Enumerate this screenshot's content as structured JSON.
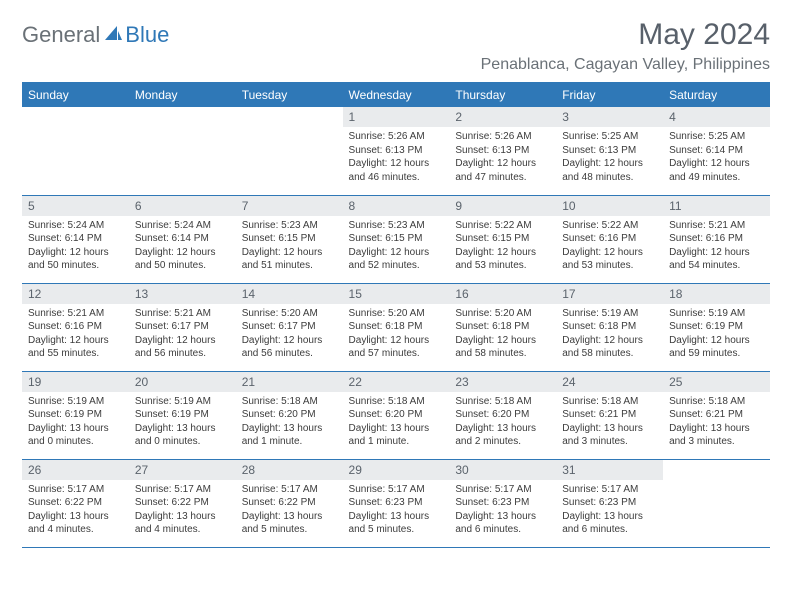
{
  "logo": {
    "text1": "General",
    "text2": "Blue"
  },
  "header": {
    "month_title": "May 2024",
    "location": "Penablanca, Cagayan Valley, Philippines"
  },
  "colors": {
    "brand_blue": "#2f78b7",
    "header_text": "#ffffff",
    "daynum_bg": "#e9ebed",
    "body_text": "#3c3c3c",
    "muted_text": "#6a7177"
  },
  "weekdays": [
    "Sunday",
    "Monday",
    "Tuesday",
    "Wednesday",
    "Thursday",
    "Friday",
    "Saturday"
  ],
  "weeks": [
    [
      null,
      null,
      null,
      {
        "n": "1",
        "sr": "Sunrise: 5:26 AM",
        "ss": "Sunset: 6:13 PM",
        "dl1": "Daylight: 12 hours",
        "dl2": "and 46 minutes."
      },
      {
        "n": "2",
        "sr": "Sunrise: 5:26 AM",
        "ss": "Sunset: 6:13 PM",
        "dl1": "Daylight: 12 hours",
        "dl2": "and 47 minutes."
      },
      {
        "n": "3",
        "sr": "Sunrise: 5:25 AM",
        "ss": "Sunset: 6:13 PM",
        "dl1": "Daylight: 12 hours",
        "dl2": "and 48 minutes."
      },
      {
        "n": "4",
        "sr": "Sunrise: 5:25 AM",
        "ss": "Sunset: 6:14 PM",
        "dl1": "Daylight: 12 hours",
        "dl2": "and 49 minutes."
      }
    ],
    [
      {
        "n": "5",
        "sr": "Sunrise: 5:24 AM",
        "ss": "Sunset: 6:14 PM",
        "dl1": "Daylight: 12 hours",
        "dl2": "and 50 minutes."
      },
      {
        "n": "6",
        "sr": "Sunrise: 5:24 AM",
        "ss": "Sunset: 6:14 PM",
        "dl1": "Daylight: 12 hours",
        "dl2": "and 50 minutes."
      },
      {
        "n": "7",
        "sr": "Sunrise: 5:23 AM",
        "ss": "Sunset: 6:15 PM",
        "dl1": "Daylight: 12 hours",
        "dl2": "and 51 minutes."
      },
      {
        "n": "8",
        "sr": "Sunrise: 5:23 AM",
        "ss": "Sunset: 6:15 PM",
        "dl1": "Daylight: 12 hours",
        "dl2": "and 52 minutes."
      },
      {
        "n": "9",
        "sr": "Sunrise: 5:22 AM",
        "ss": "Sunset: 6:15 PM",
        "dl1": "Daylight: 12 hours",
        "dl2": "and 53 minutes."
      },
      {
        "n": "10",
        "sr": "Sunrise: 5:22 AM",
        "ss": "Sunset: 6:16 PM",
        "dl1": "Daylight: 12 hours",
        "dl2": "and 53 minutes."
      },
      {
        "n": "11",
        "sr": "Sunrise: 5:21 AM",
        "ss": "Sunset: 6:16 PM",
        "dl1": "Daylight: 12 hours",
        "dl2": "and 54 minutes."
      }
    ],
    [
      {
        "n": "12",
        "sr": "Sunrise: 5:21 AM",
        "ss": "Sunset: 6:16 PM",
        "dl1": "Daylight: 12 hours",
        "dl2": "and 55 minutes."
      },
      {
        "n": "13",
        "sr": "Sunrise: 5:21 AM",
        "ss": "Sunset: 6:17 PM",
        "dl1": "Daylight: 12 hours",
        "dl2": "and 56 minutes."
      },
      {
        "n": "14",
        "sr": "Sunrise: 5:20 AM",
        "ss": "Sunset: 6:17 PM",
        "dl1": "Daylight: 12 hours",
        "dl2": "and 56 minutes."
      },
      {
        "n": "15",
        "sr": "Sunrise: 5:20 AM",
        "ss": "Sunset: 6:18 PM",
        "dl1": "Daylight: 12 hours",
        "dl2": "and 57 minutes."
      },
      {
        "n": "16",
        "sr": "Sunrise: 5:20 AM",
        "ss": "Sunset: 6:18 PM",
        "dl1": "Daylight: 12 hours",
        "dl2": "and 58 minutes."
      },
      {
        "n": "17",
        "sr": "Sunrise: 5:19 AM",
        "ss": "Sunset: 6:18 PM",
        "dl1": "Daylight: 12 hours",
        "dl2": "and 58 minutes."
      },
      {
        "n": "18",
        "sr": "Sunrise: 5:19 AM",
        "ss": "Sunset: 6:19 PM",
        "dl1": "Daylight: 12 hours",
        "dl2": "and 59 minutes."
      }
    ],
    [
      {
        "n": "19",
        "sr": "Sunrise: 5:19 AM",
        "ss": "Sunset: 6:19 PM",
        "dl1": "Daylight: 13 hours",
        "dl2": "and 0 minutes."
      },
      {
        "n": "20",
        "sr": "Sunrise: 5:19 AM",
        "ss": "Sunset: 6:19 PM",
        "dl1": "Daylight: 13 hours",
        "dl2": "and 0 minutes."
      },
      {
        "n": "21",
        "sr": "Sunrise: 5:18 AM",
        "ss": "Sunset: 6:20 PM",
        "dl1": "Daylight: 13 hours",
        "dl2": "and 1 minute."
      },
      {
        "n": "22",
        "sr": "Sunrise: 5:18 AM",
        "ss": "Sunset: 6:20 PM",
        "dl1": "Daylight: 13 hours",
        "dl2": "and 1 minute."
      },
      {
        "n": "23",
        "sr": "Sunrise: 5:18 AM",
        "ss": "Sunset: 6:20 PM",
        "dl1": "Daylight: 13 hours",
        "dl2": "and 2 minutes."
      },
      {
        "n": "24",
        "sr": "Sunrise: 5:18 AM",
        "ss": "Sunset: 6:21 PM",
        "dl1": "Daylight: 13 hours",
        "dl2": "and 3 minutes."
      },
      {
        "n": "25",
        "sr": "Sunrise: 5:18 AM",
        "ss": "Sunset: 6:21 PM",
        "dl1": "Daylight: 13 hours",
        "dl2": "and 3 minutes."
      }
    ],
    [
      {
        "n": "26",
        "sr": "Sunrise: 5:17 AM",
        "ss": "Sunset: 6:22 PM",
        "dl1": "Daylight: 13 hours",
        "dl2": "and 4 minutes."
      },
      {
        "n": "27",
        "sr": "Sunrise: 5:17 AM",
        "ss": "Sunset: 6:22 PM",
        "dl1": "Daylight: 13 hours",
        "dl2": "and 4 minutes."
      },
      {
        "n": "28",
        "sr": "Sunrise: 5:17 AM",
        "ss": "Sunset: 6:22 PM",
        "dl1": "Daylight: 13 hours",
        "dl2": "and 5 minutes."
      },
      {
        "n": "29",
        "sr": "Sunrise: 5:17 AM",
        "ss": "Sunset: 6:23 PM",
        "dl1": "Daylight: 13 hours",
        "dl2": "and 5 minutes."
      },
      {
        "n": "30",
        "sr": "Sunrise: 5:17 AM",
        "ss": "Sunset: 6:23 PM",
        "dl1": "Daylight: 13 hours",
        "dl2": "and 6 minutes."
      },
      {
        "n": "31",
        "sr": "Sunrise: 5:17 AM",
        "ss": "Sunset: 6:23 PM",
        "dl1": "Daylight: 13 hours",
        "dl2": "and 6 minutes."
      },
      null
    ]
  ]
}
